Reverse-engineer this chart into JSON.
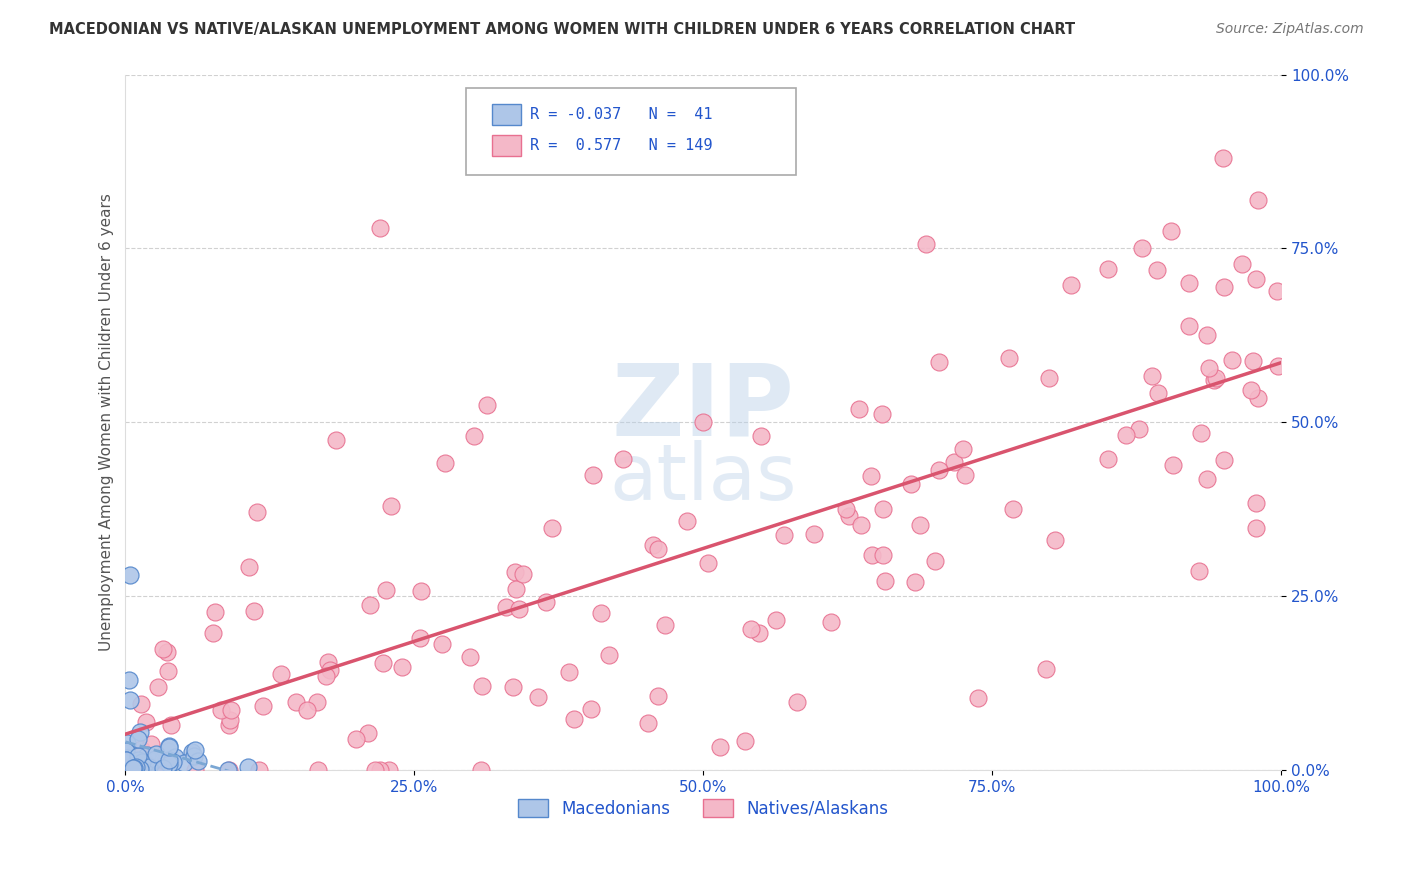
{
  "title": "MACEDONIAN VS NATIVE/ALASKAN UNEMPLOYMENT AMONG WOMEN WITH CHILDREN UNDER 6 YEARS CORRELATION CHART",
  "source": "Source: ZipAtlas.com",
  "ylabel": "Unemployment Among Women with Children Under 6 years",
  "xlim": [
    0.0,
    1.0
  ],
  "ylim": [
    0.0,
    1.0
  ],
  "xticks": [
    0.0,
    0.25,
    0.5,
    0.75,
    1.0
  ],
  "yticks": [
    0.0,
    0.25,
    0.5,
    0.75,
    1.0
  ],
  "xticklabels": [
    "0.0%",
    "25.0%",
    "50.0%",
    "75.0%",
    "100.0%"
  ],
  "yticklabels": [
    "0.0%",
    "25.0%",
    "50.0%",
    "75.0%",
    "100.0%"
  ],
  "macedonian_color": "#aec6e8",
  "native_color": "#f4b8c8",
  "macedonian_edge": "#5588cc",
  "native_edge": "#e87090",
  "trend_macedonian_color": "#7ba7d4",
  "trend_native_color": "#d9546e",
  "legend_macedonian_label": "Macedonians",
  "legend_native_label": "Natives/Alaskans",
  "R_mac": -0.037,
  "N_mac": 41,
  "R_nat": 0.577,
  "N_nat": 149,
  "background_color": "#ffffff",
  "grid_color": "#cccccc",
  "title_color": "#333333",
  "source_color": "#777777",
  "tick_color": "#2255cc",
  "ylabel_color": "#555555"
}
